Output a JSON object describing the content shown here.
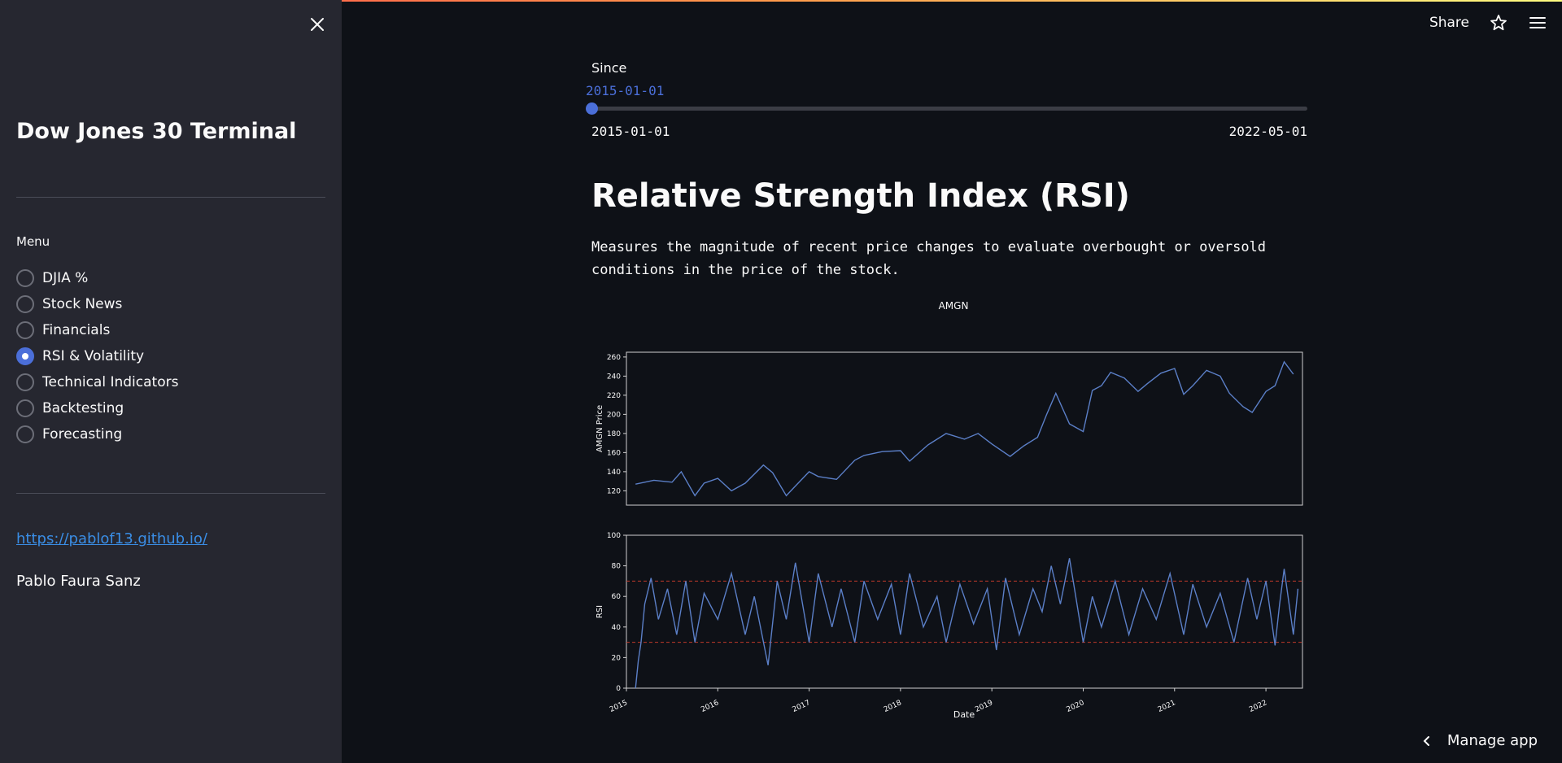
{
  "sidebar": {
    "app_title": "Dow Jones 30 Terminal",
    "menu_label": "Menu",
    "items": [
      {
        "label": "DJIA %",
        "checked": false
      },
      {
        "label": "Stock News",
        "checked": false
      },
      {
        "label": "Financials",
        "checked": false
      },
      {
        "label": "RSI & Volatility",
        "checked": true
      },
      {
        "label": "Technical Indicators",
        "checked": false
      },
      {
        "label": "Backtesting",
        "checked": false
      },
      {
        "label": "Forecasting",
        "checked": false
      }
    ],
    "link_text": "https://pablof13.github.io/",
    "author": "Pablo Faura Sanz"
  },
  "header": {
    "share_label": "Share",
    "star_icon": "star-icon",
    "menu_icon": "hamburger-menu-icon"
  },
  "slider": {
    "label": "Since",
    "value": "2015-01-01",
    "min": "2015-01-01",
    "max": "2022-05-01"
  },
  "main": {
    "title": "Relative Strength Index (RSI)",
    "description": "Measures the magnitude of recent price changes to evaluate overbought or oversold conditions in the price of the stock."
  },
  "footer": {
    "manage_app_label": "Manage app"
  },
  "colors": {
    "accent": "#4b6fd9",
    "line": "#5b7fc7",
    "threshold": "#c0392b"
  },
  "chart_data": [
    {
      "type": "line",
      "title": "AMGN",
      "xlabel": "",
      "ylabel": "AMGN Price",
      "yticks": [
        120,
        140,
        160,
        180,
        200,
        220,
        240,
        260
      ],
      "ylim": [
        105,
        265
      ],
      "xlim": [
        2015.0,
        2022.4
      ],
      "series": [
        {
          "x": [
            2015.1,
            2015.3,
            2015.5,
            2015.6,
            2015.75,
            2015.85,
            2016.0,
            2016.15,
            2016.3,
            2016.5,
            2016.6,
            2016.75,
            2016.85,
            2017.0,
            2017.1,
            2017.3,
            2017.5,
            2017.6,
            2017.8,
            2018.0,
            2018.1,
            2018.3,
            2018.5,
            2018.7,
            2018.85,
            2019.0,
            2019.2,
            2019.35,
            2019.5,
            2019.6,
            2019.7,
            2019.85,
            2020.0,
            2020.1,
            2020.2,
            2020.3,
            2020.45,
            2020.6,
            2020.7,
            2020.85,
            2021.0,
            2021.1,
            2021.2,
            2021.35,
            2021.5,
            2021.6,
            2021.75,
            2021.85,
            2022.0,
            2022.1,
            2022.2,
            2022.3
          ],
          "y": [
            127,
            131,
            129,
            140,
            115,
            128,
            133,
            120,
            128,
            147,
            139,
            115,
            125,
            140,
            135,
            132,
            152,
            157,
            161,
            162,
            151,
            168,
            180,
            174,
            180,
            169,
            156,
            167,
            176,
            200,
            222,
            190,
            182,
            225,
            230,
            244,
            238,
            224,
            232,
            243,
            248,
            221,
            230,
            246,
            240,
            222,
            208,
            202,
            224,
            230,
            255,
            242
          ]
        }
      ]
    },
    {
      "type": "line",
      "title": "",
      "xlabel": "Date",
      "ylabel": "RSI",
      "yticks": [
        0,
        20,
        40,
        60,
        80,
        100
      ],
      "ylim": [
        0,
        100
      ],
      "xlim": [
        2015.0,
        2022.4
      ],
      "xticks": [
        "2015",
        "2016",
        "2017",
        "2018",
        "2019",
        "2020",
        "2021",
        "2022"
      ],
      "thresholds": [
        30,
        70
      ],
      "series": [
        {
          "x": [
            2015.1,
            2015.13,
            2015.16,
            2015.2,
            2015.27,
            2015.35,
            2015.45,
            2015.55,
            2015.65,
            2015.75,
            2015.85,
            2016.0,
            2016.15,
            2016.3,
            2016.4,
            2016.55,
            2016.65,
            2016.75,
            2016.85,
            2017.0,
            2017.1,
            2017.25,
            2017.35,
            2017.5,
            2017.6,
            2017.75,
            2017.9,
            2018.0,
            2018.1,
            2018.25,
            2018.4,
            2018.5,
            2018.65,
            2018.8,
            2018.95,
            2019.05,
            2019.15,
            2019.3,
            2019.45,
            2019.55,
            2019.65,
            2019.75,
            2019.85,
            2020.0,
            2020.1,
            2020.2,
            2020.35,
            2020.5,
            2020.65,
            2020.8,
            2020.95,
            2021.1,
            2021.2,
            2021.35,
            2021.5,
            2021.65,
            2021.8,
            2021.9,
            2022.0,
            2022.1,
            2022.15,
            2022.2,
            2022.3,
            2022.35
          ],
          "y": [
            0,
            18,
            30,
            55,
            72,
            45,
            65,
            35,
            70,
            30,
            62,
            45,
            75,
            35,
            60,
            15,
            70,
            45,
            82,
            30,
            75,
            40,
            65,
            30,
            70,
            45,
            68,
            35,
            75,
            40,
            60,
            30,
            68,
            42,
            65,
            25,
            72,
            35,
            65,
            50,
            80,
            55,
            85,
            30,
            60,
            40,
            70,
            35,
            65,
            45,
            75,
            35,
            68,
            40,
            62,
            30,
            72,
            45,
            70,
            28,
            55,
            78,
            35,
            65
          ]
        }
      ]
    }
  ]
}
